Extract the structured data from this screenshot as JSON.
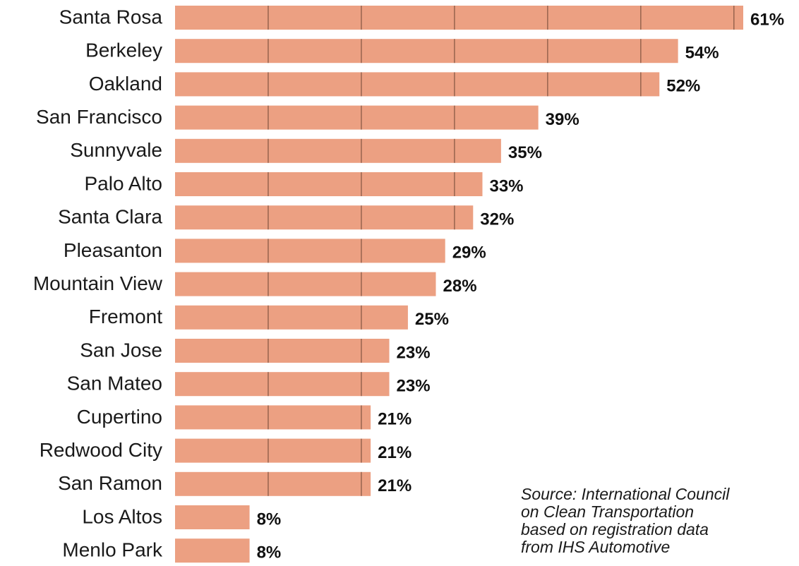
{
  "chart_data": {
    "type": "bar",
    "orientation": "horizontal",
    "categories": [
      "Santa Rosa",
      "Berkeley",
      "Oakland",
      "San Francisco",
      "Sunnyvale",
      "Palo Alto",
      "Santa Clara",
      "Pleasanton",
      "Mountain View",
      "Fremont",
      "San Jose",
      "San Mateo",
      "Cupertino",
      "Redwood City",
      "San Ramon",
      "Los Altos",
      "Menlo Park"
    ],
    "values": [
      61,
      54,
      52,
      39,
      35,
      33,
      32,
      29,
      28,
      25,
      23,
      23,
      21,
      21,
      21,
      8,
      8
    ],
    "value_labels": [
      "61%",
      "54%",
      "52%",
      "39%",
      "35%",
      "33%",
      "32%",
      "29%",
      "28%",
      "25%",
      "23%",
      "23%",
      "21%",
      "21%",
      "21%",
      "8%",
      "8%"
    ],
    "xlim": [
      0,
      61
    ],
    "grid": true,
    "bar_color": "#eca082",
    "grid_color": "#8a5a46"
  },
  "source": {
    "lines": [
      "Source: International Council",
      "on Clean Transportation",
      "based on registration data",
      "from IHS Automotive"
    ]
  }
}
